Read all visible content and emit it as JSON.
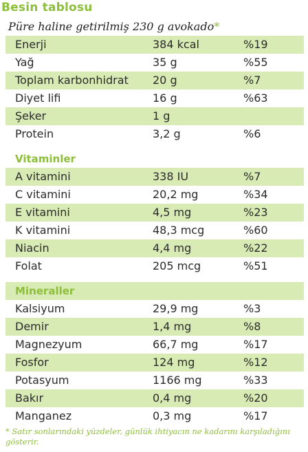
{
  "title": "Besin tablosu",
  "subtitle": "Püre haline getirilmiş 230 g avokado",
  "subtitle_star": "*",
  "colors": {
    "accent": "#8dbf3a",
    "row_shade": "#d9ebb5"
  },
  "nutrients": [
    {
      "name": "Enerji",
      "amount": "384 kcal",
      "percent": "%19"
    },
    {
      "name": "Yağ",
      "amount": "35 g",
      "percent": "%55"
    },
    {
      "name": "Toplam karbonhidrat",
      "amount": "20 g",
      "percent": "%7"
    },
    {
      "name": "Diyet lifi",
      "amount": "16 g",
      "percent": "%63"
    },
    {
      "name": "Şeker",
      "amount": "1 g",
      "percent": ""
    },
    {
      "name": "Protein",
      "amount": "3,2 g",
      "percent": "%6"
    }
  ],
  "vitamins_heading": "Vitaminler",
  "vitamins": [
    {
      "name": "A vitamini",
      "amount": "338 IU",
      "percent": "%7"
    },
    {
      "name": "C vitamini",
      "amount": "20,2 mg",
      "percent": "%34"
    },
    {
      "name": "E vitamini",
      "amount": "4,5 mg",
      "percent": "%23"
    },
    {
      "name": "K vitamini",
      "amount": "48,3 mcg",
      "percent": "%60"
    },
    {
      "name": "Niacin",
      "amount": "4,4 mg",
      "percent": "%22"
    },
    {
      "name": "Folat",
      "amount": "205 mcg",
      "percent": "%51"
    }
  ],
  "minerals_heading": "Mineraller",
  "minerals": [
    {
      "name": "Kalsiyum",
      "amount": "29,9 mg",
      "percent": "%3"
    },
    {
      "name": "Demir",
      "amount": "1,4 mg",
      "percent": "%8"
    },
    {
      "name": "Magnezyum",
      "amount": "66,7 mg",
      "percent": "%17"
    },
    {
      "name": "Fosfor",
      "amount": "124 mg",
      "percent": "%12"
    },
    {
      "name": "Potasyum",
      "amount": "1166 mg",
      "percent": "%33"
    },
    {
      "name": "Bakır",
      "amount": "0,4 mg",
      "percent": "%20"
    },
    {
      "name": "Manganez",
      "amount": "0,3 mg",
      "percent": "%17"
    }
  ],
  "footnote": "* Satır sonlarındaki yüzdeler, günlük ihtiyacın ne kadarını karşıladığını gösterir."
}
